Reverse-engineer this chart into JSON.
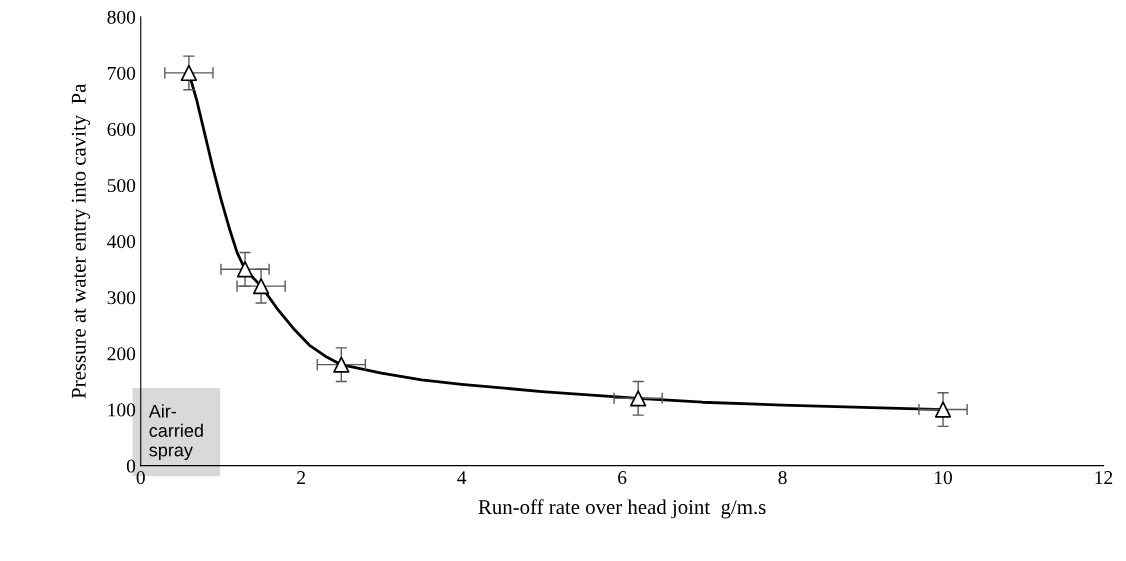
{
  "chart_data": {
    "type": "scatter",
    "xlabel": "Run-off rate over head joint  g/m.s",
    "ylabel": "Pressure at water entry into cavity  Pa",
    "xlim": [
      0,
      12
    ],
    "xticks": [
      0,
      2,
      4,
      6,
      8,
      10,
      12
    ],
    "ylim": [
      0,
      800
    ],
    "yticks": [
      0,
      100,
      200,
      300,
      400,
      500,
      600,
      700,
      800
    ],
    "grid": false,
    "legend": false,
    "series": [
      {
        "type": "line",
        "color": "#000000",
        "x": [
          0.6,
          0.7,
          0.8,
          0.9,
          1.0,
          1.1,
          1.2,
          1.3,
          1.5,
          1.7,
          1.9,
          2.1,
          2.3,
          2.5,
          3,
          3.5,
          4,
          5,
          6.2,
          7,
          8,
          9,
          10
        ],
        "values": [
          700,
          650,
          590,
          530,
          475,
          425,
          380,
          350,
          320,
          280,
          245,
          215,
          195,
          180,
          165,
          153,
          145,
          132,
          120,
          113,
          108,
          104,
          100
        ],
        "marker": "none",
        "line_style": "solid"
      },
      {
        "color": "#000000",
        "x": [
          0.6,
          1.3,
          1.5,
          2.5,
          6.2,
          10
        ],
        "values": [
          700,
          350,
          320,
          180,
          120,
          100
        ],
        "marker": "triangle",
        "errors": [
          30,
          30,
          30,
          30,
          30,
          30
        ],
        "xerrors": [
          0.3,
          0.3,
          0.3,
          0.3,
          0.3,
          0.3
        ]
      }
    ],
    "annotations": [
      "Air-\ncarried\nspray"
    ]
  }
}
